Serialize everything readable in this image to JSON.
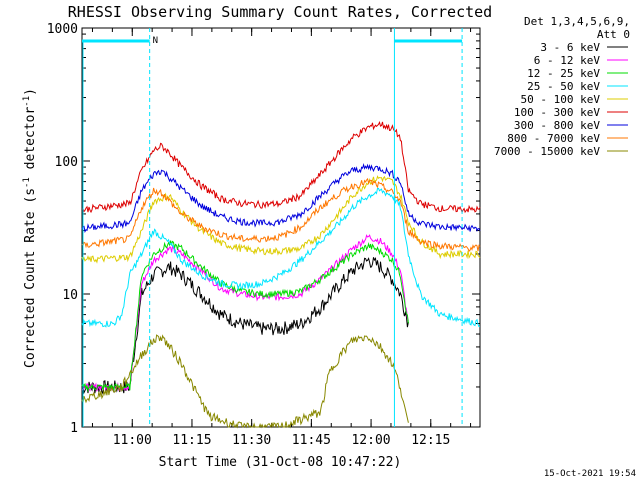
{
  "chart_data": {
    "type": "line",
    "title": "RHESSI Observing Summary Count Rates, Corrected",
    "xlabel": "Start Time (31-Oct-08 10:47:22)",
    "ylabel": "Corrected Count Rate (s",
    "ylabel_sup1": "-1",
    "ylabel_mid": " detector",
    "ylabel_sup2": "-1",
    "ylabel_end": ")",
    "timestamp": "15-Oct-2021 19:54",
    "x_ticks": [
      "11:00",
      "11:15",
      "11:30",
      "11:45",
      "12:00",
      "12:15"
    ],
    "x_tick_minutes": [
      12.63,
      27.63,
      42.63,
      57.63,
      72.63,
      87.63
    ],
    "x_range_minutes": [
      0,
      100
    ],
    "y_scale": "log",
    "y_range": [
      1,
      1000
    ],
    "y_tick_labels": [
      "1",
      "10",
      "100",
      "1000"
    ],
    "legend_header": [
      "Det 1,3,4,5,6,9,",
      "Att 0"
    ],
    "status_bar": {
      "label": "N",
      "color": "#00e5ff"
    },
    "series": [
      {
        "name": "3 - 6 keV",
        "color": "#000000",
        "x": [
          0,
          12,
          15,
          18,
          22,
          25,
          30,
          35,
          40,
          45,
          50,
          55,
          60,
          65,
          68,
          72,
          75,
          78,
          80,
          82
        ],
        "values": [
          2,
          2,
          10,
          14,
          16,
          14,
          10,
          7,
          6,
          5.5,
          5.5,
          6,
          8,
          12,
          15,
          18,
          16,
          13,
          10,
          6
        ]
      },
      {
        "name": "6 - 12 keV",
        "color": "#ff00ff",
        "x": [
          0,
          12,
          15,
          18,
          22,
          25,
          30,
          35,
          40,
          45,
          50,
          55,
          60,
          65,
          68,
          72,
          75,
          78,
          80,
          82
        ],
        "values": [
          2,
          2,
          12,
          18,
          22,
          20,
          15,
          11,
          10,
          9.5,
          9.5,
          10,
          13,
          18,
          22,
          27,
          25,
          20,
          15,
          6
        ]
      },
      {
        "name": "12 - 25 keV",
        "color": "#00dd00",
        "x": [
          0,
          12,
          15,
          18,
          22,
          25,
          30,
          35,
          40,
          45,
          50,
          55,
          60,
          65,
          68,
          72,
          75,
          78,
          80,
          82
        ],
        "values": [
          2,
          2,
          14,
          20,
          24,
          22,
          16,
          12,
          10.5,
          10,
          10,
          10.5,
          13,
          17,
          20,
          23,
          21,
          18,
          14,
          6
        ]
      },
      {
        "name": "25 - 50 keV",
        "color": "#00e5ff",
        "x": [
          0,
          8,
          10,
          12,
          15,
          18,
          22,
          25,
          30,
          35,
          40,
          45,
          50,
          55,
          60,
          65,
          68,
          72,
          75,
          78,
          80,
          82,
          85,
          90,
          100
        ],
        "values": [
          6,
          6,
          7,
          14,
          20,
          30,
          24,
          18,
          14,
          12,
          11.5,
          12,
          14,
          18,
          25,
          35,
          45,
          55,
          60,
          55,
          45,
          20,
          10,
          7,
          6
        ]
      },
      {
        "name": "50 - 100 keV",
        "color": "#ddcc00",
        "x": [
          0,
          12,
          15,
          18,
          22,
          25,
          30,
          35,
          40,
          45,
          50,
          55,
          60,
          65,
          68,
          72,
          75,
          78,
          80,
          82,
          85,
          90,
          100
        ],
        "values": [
          18,
          19,
          30,
          50,
          55,
          42,
          30,
          24,
          22,
          21,
          21,
          22,
          28,
          42,
          55,
          70,
          75,
          70,
          55,
          35,
          25,
          20,
          20
        ]
      },
      {
        "name": "100 - 300 keV",
        "color": "#dd0000",
        "x": [
          0,
          12,
          15,
          18,
          20,
          22,
          25,
          30,
          35,
          40,
          45,
          50,
          55,
          60,
          65,
          68,
          72,
          75,
          78,
          80,
          82,
          85,
          90,
          100
        ],
        "values": [
          43,
          48,
          85,
          120,
          130,
          115,
          90,
          65,
          52,
          48,
          47,
          48,
          55,
          80,
          120,
          150,
          180,
          190,
          175,
          150,
          60,
          48,
          44,
          43
        ]
      },
      {
        "name": "300 - 800 keV",
        "color": "#0000dd",
        "x": [
          0,
          12,
          15,
          18,
          20,
          22,
          25,
          30,
          35,
          40,
          45,
          50,
          55,
          60,
          65,
          68,
          72,
          75,
          78,
          80,
          82,
          85,
          90,
          100
        ],
        "values": [
          31,
          34,
          60,
          80,
          85,
          75,
          62,
          46,
          38,
          35,
          34,
          35,
          40,
          55,
          75,
          85,
          90,
          88,
          80,
          70,
          40,
          34,
          32,
          31
        ]
      },
      {
        "name": "800 - 7000 keV",
        "color": "#ff7700",
        "x": [
          0,
          12,
          15,
          18,
          20,
          22,
          25,
          30,
          35,
          40,
          45,
          50,
          55,
          60,
          65,
          68,
          72,
          75,
          78,
          80,
          82,
          85,
          90,
          100
        ],
        "values": [
          23,
          26,
          45,
          60,
          58,
          50,
          40,
          32,
          28,
          26,
          26,
          27,
          32,
          45,
          58,
          65,
          70,
          65,
          58,
          50,
          30,
          25,
          23,
          22
        ]
      },
      {
        "name": "7000 - 15000 keV",
        "color": "#888800",
        "x": [
          0,
          10,
          12,
          15,
          18,
          20,
          22,
          25,
          28,
          32,
          40,
          50,
          60,
          62,
          65,
          68,
          72,
          75,
          78,
          80,
          82
        ],
        "values": [
          1.6,
          2,
          2.5,
          3.5,
          4.5,
          4.8,
          4,
          3,
          2,
          1.2,
          1,
          1,
          1.3,
          2.5,
          3.5,
          4.5,
          4.8,
          4,
          3,
          2,
          1
        ]
      }
    ]
  }
}
